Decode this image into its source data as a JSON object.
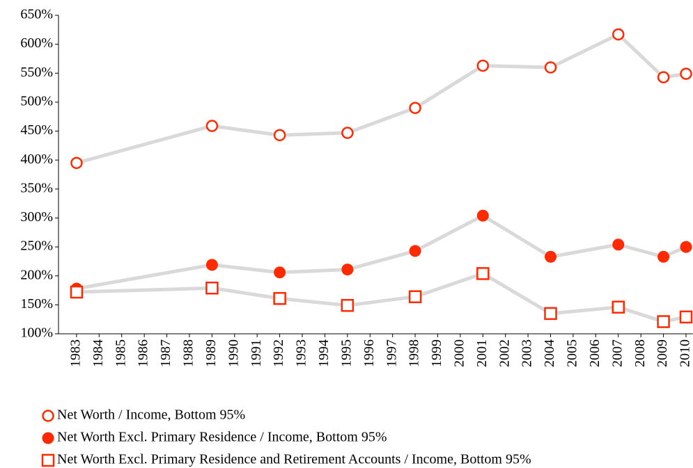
{
  "chart_data": {
    "type": "line",
    "x": [
      1983,
      1989,
      1992,
      1995,
      1998,
      2001,
      2004,
      2007,
      2009,
      2010
    ],
    "xlim": [
      1982.2,
      2010.3
    ],
    "xticks": [
      1983,
      1984,
      1985,
      1986,
      1987,
      1988,
      1989,
      1990,
      1991,
      1992,
      1993,
      1994,
      1995,
      1996,
      1997,
      1998,
      1999,
      2000,
      2001,
      2002,
      2003,
      2004,
      2005,
      2006,
      2007,
      2008,
      2009,
      2010
    ],
    "ylim": [
      100,
      650
    ],
    "yticks": [
      {
        "value": 100,
        "label": "100%"
      },
      {
        "value": 150,
        "label": "150%"
      },
      {
        "value": 200,
        "label": "200%"
      },
      {
        "value": 250,
        "label": "250%"
      },
      {
        "value": 300,
        "label": "300%"
      },
      {
        "value": 350,
        "label": "350%"
      },
      {
        "value": 400,
        "label": "400%"
      },
      {
        "value": 450,
        "label": "450%"
      },
      {
        "value": 500,
        "label": "500%"
      },
      {
        "value": 550,
        "label": "550%"
      },
      {
        "value": 600,
        "label": "600%"
      },
      {
        "value": 650,
        "label": "650%"
      }
    ],
    "grid": false,
    "legend": "bottom",
    "line_color": "#d9d9d9",
    "series": [
      {
        "name": "Net Worth / Income, Bottom 95%",
        "color": "#ff2a00",
        "marker": "circle-open",
        "values": [
          395,
          459,
          443,
          447,
          490,
          563,
          560,
          617,
          543,
          549
        ]
      },
      {
        "name": "Net Worth Excl. Primary Residence / Income, Bottom 95%",
        "color": "#ff2a00",
        "marker": "circle-filled",
        "values": [
          178,
          219,
          206,
          211,
          243,
          304,
          233,
          254,
          233,
          250
        ]
      },
      {
        "name": "Net Worth Excl. Primary Residence and Retirement Accounts / Income, Bottom 95%",
        "color": "#ff2a00",
        "marker": "square-open",
        "values": [
          172,
          179,
          161,
          149,
          164,
          204,
          135,
          146,
          121,
          129
        ]
      }
    ]
  }
}
